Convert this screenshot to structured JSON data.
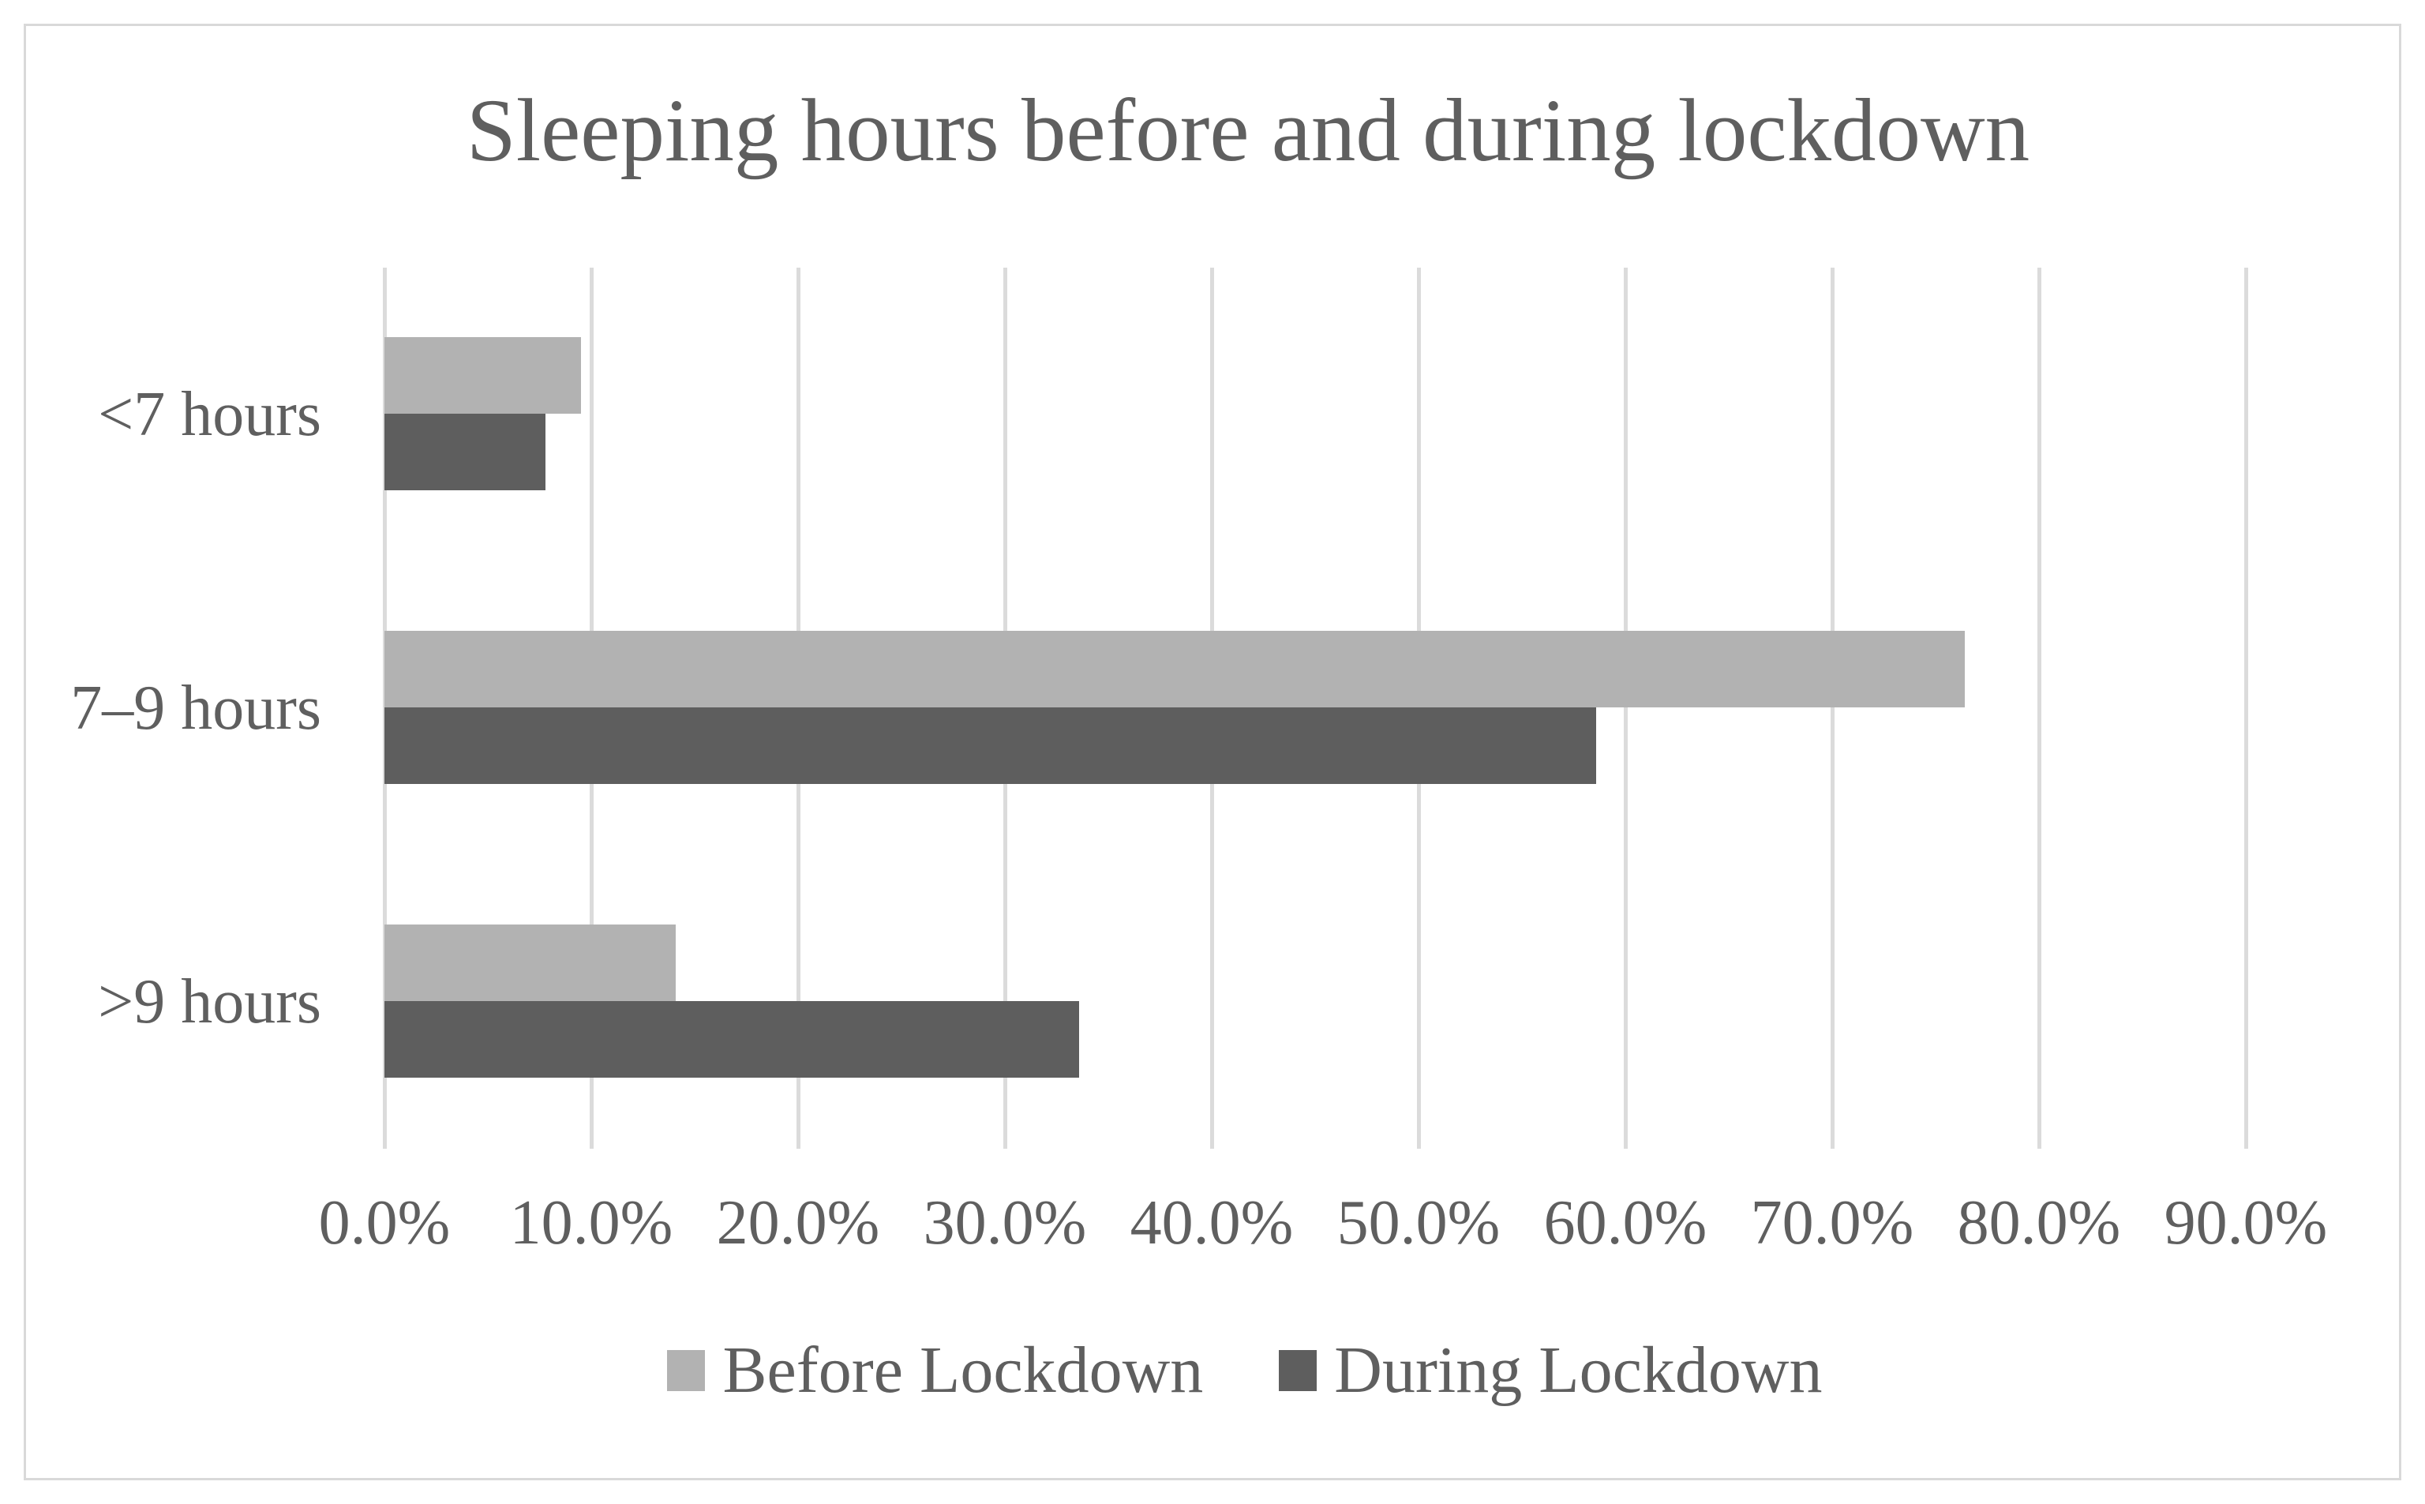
{
  "chart_data": {
    "type": "bar",
    "orientation": "horizontal",
    "title": "Sleeping hours before and during lockdown",
    "categories": [
      "<7 hours",
      "7–9 hours",
      ">9 hours"
    ],
    "series": [
      {
        "name": "Before Lockdown",
        "color": "#B2B2B2",
        "values_pct": [
          9.5,
          76.4,
          14.1
        ]
      },
      {
        "name": "During Lockdown",
        "color": "#5E5E5E",
        "values_pct": [
          7.8,
          58.6,
          33.6
        ]
      }
    ],
    "x_ticks": [
      "0.0%",
      "10.0%",
      "20.0%",
      "30.0%",
      "40.0%",
      "50.0%",
      "60.0%",
      "70.0%",
      "80.0%",
      "90.0%"
    ],
    "xlim": [
      0,
      90
    ],
    "xlabel": "",
    "ylabel": "",
    "grid": "vertical-gridlines-on",
    "legend_position": "bottom",
    "colors": {
      "text": "#5F5F5F",
      "gridline": "#DBDBDB",
      "frame_border": "#D9D9D9",
      "background": "#FFFFFF"
    }
  }
}
